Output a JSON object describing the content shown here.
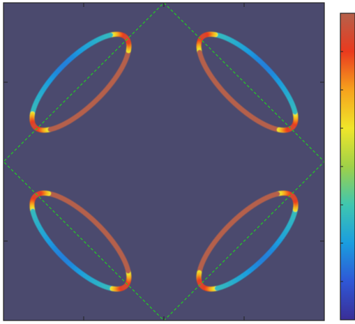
{
  "chart_data": {
    "type": "heatmap",
    "title": "",
    "xlabel": "",
    "ylabel": "",
    "xlim": [
      -1,
      1
    ],
    "ylim": [
      -1,
      1
    ],
    "grid": false,
    "background_color": "#4b4a6e",
    "colormap": "jet",
    "colormap_stops": [
      "#3a2e96",
      "#2f57d6",
      "#1a9ddf",
      "#3fc6b0",
      "#9fd148",
      "#f0e62a",
      "#f6a21d",
      "#ea3a1e",
      "#b5614b"
    ],
    "colorbar_range": [
      0,
      1
    ],
    "colorbar_ticks": [
      0,
      0.125,
      0.25,
      0.375,
      0.5,
      0.625,
      0.75,
      0.875,
      1
    ],
    "axis_ticks_x": [
      -0.5,
      0,
      0.5
    ],
    "axis_ticks_y": [
      -0.5,
      0.5
    ],
    "boundary": {
      "shape": "diamond",
      "color": "#22d022",
      "style": "dashed",
      "vertices": [
        [
          0,
          1
        ],
        [
          1,
          0
        ],
        [
          0,
          -1
        ],
        [
          -1,
          0
        ]
      ]
    },
    "pockets": [
      {
        "name": "upper-left",
        "center": [
          -0.52,
          0.5
        ],
        "semi_major": 0.4,
        "semi_minor": 0.15,
        "angle_deg": 45
      },
      {
        "name": "upper-right",
        "center": [
          0.52,
          0.5
        ],
        "semi_major": 0.4,
        "semi_minor": 0.15,
        "angle_deg": -45
      },
      {
        "name": "lower-left",
        "center": [
          -0.52,
          -0.5
        ],
        "semi_major": 0.4,
        "semi_minor": 0.15,
        "angle_deg": -45
      },
      {
        "name": "lower-right",
        "center": [
          0.52,
          -0.5
        ],
        "semi_major": 0.4,
        "semi_minor": 0.15,
        "angle_deg": 45
      }
    ]
  }
}
